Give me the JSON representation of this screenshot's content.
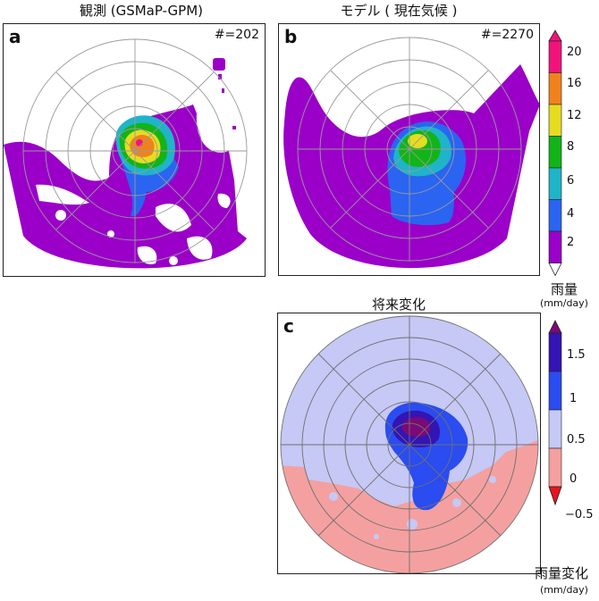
{
  "panels": {
    "a": {
      "label": "a",
      "title": "観測 (GSMaP-GPM)",
      "count": "#=202"
    },
    "b": {
      "label": "b",
      "title": "モデル ( 現在気候 )",
      "count": "#=2270"
    },
    "c": {
      "label": "c",
      "title": "将来変化"
    }
  },
  "colorbar_top": {
    "title": "雨量",
    "unit": "(mm/day)",
    "ticks": [
      "2",
      "4",
      "6",
      "8",
      "12",
      "16",
      "20"
    ],
    "colors": [
      "#9a00c8",
      "#2a64f0",
      "#1fb4c8",
      "#12b418",
      "#e6dc20",
      "#f0821e",
      "#f0147a"
    ]
  },
  "colorbar_bottom": {
    "title": "雨量変化",
    "unit": "(mm/day)",
    "ticks": [
      "−0.5",
      "0",
      "0.5",
      "1",
      "1.5"
    ],
    "colors": [
      "#e8141e",
      "#f4a0a0",
      "#c6c8f5",
      "#2a4cf0",
      "#3414b4",
      "#7a0a78"
    ]
  },
  "chart_data": [
    {
      "type": "heatmap",
      "panel": "a",
      "title": "観測 (GSMaP-GPM)",
      "sample_size": 202,
      "projection": "polar",
      "peak_mm_per_day": 20,
      "levels_mm_per_day": [
        2,
        4,
        6,
        8,
        12,
        16,
        20
      ]
    },
    {
      "type": "heatmap",
      "panel": "b",
      "title": "モデル ( 現在気候 )",
      "sample_size": 2270,
      "projection": "polar",
      "peak_mm_per_day": 12,
      "levels_mm_per_day": [
        2,
        4,
        6,
        8,
        12,
        16,
        20
      ]
    },
    {
      "type": "heatmap",
      "panel": "c",
      "title": "将来変化",
      "projection": "polar",
      "levels_mm_per_day": [
        -0.5,
        0,
        0.5,
        1,
        1.5
      ]
    }
  ]
}
